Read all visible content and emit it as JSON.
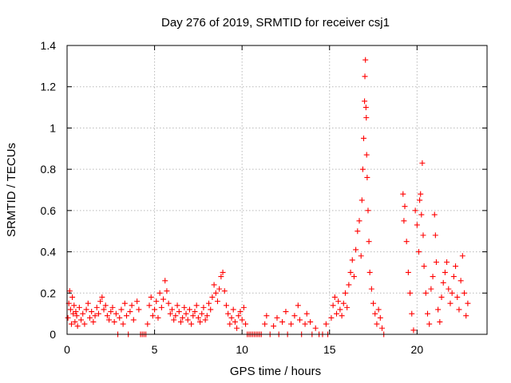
{
  "chart_data": {
    "type": "scatter",
    "title": "Day 276 of 2019, SRMTID for receiver csj1",
    "xlabel": "GPS time / hours",
    "ylabel": "SRMTID / TECUs",
    "xlim": [
      0,
      24
    ],
    "ylim": [
      0,
      1.4
    ],
    "x_ticks": [
      0,
      5,
      10,
      15,
      20
    ],
    "x_tick_labels": [
      "0",
      "5",
      "10",
      "15",
      "20"
    ],
    "y_ticks": [
      0,
      0.2,
      0.4,
      0.6,
      0.8,
      1.0,
      1.2,
      1.4
    ],
    "y_tick_labels": [
      "0",
      "0.2",
      "0.4",
      "0.6",
      "0.8",
      "1",
      "1.2",
      "1.4"
    ],
    "grid": true,
    "marker": "plus",
    "series": [
      {
        "name": "SRMTID",
        "color": "#ff0000",
        "points": [
          [
            0.05,
            0.08
          ],
          [
            0.1,
            0.15
          ],
          [
            0.15,
            0.21
          ],
          [
            0.2,
            0.12
          ],
          [
            0.25,
            0.05
          ],
          [
            0.3,
            0.18
          ],
          [
            0.35,
            0.1
          ],
          [
            0.4,
            0.14
          ],
          [
            0.45,
            0.06
          ],
          [
            0.5,
            0.11
          ],
          [
            0.55,
            0.09
          ],
          [
            0.6,
            0.04
          ],
          [
            0.7,
            0.13
          ],
          [
            0.8,
            0.07
          ],
          [
            0.9,
            0.1
          ],
          [
            1.0,
            0.05
          ],
          [
            1.1,
            0.12
          ],
          [
            1.2,
            0.15
          ],
          [
            1.3,
            0.08
          ],
          [
            1.4,
            0.11
          ],
          [
            1.5,
            0.06
          ],
          [
            1.6,
            0.09
          ],
          [
            1.7,
            0.13
          ],
          [
            1.8,
            0.1
          ],
          [
            1.9,
            0.16
          ],
          [
            2.0,
            0.18
          ],
          [
            2.1,
            0.12
          ],
          [
            2.2,
            0.14
          ],
          [
            2.3,
            0.09
          ],
          [
            2.4,
            0.07
          ],
          [
            2.5,
            0.11
          ],
          [
            2.6,
            0.13
          ],
          [
            2.7,
            0.06
          ],
          [
            2.8,
            0.1
          ],
          [
            2.9,
            0.0
          ],
          [
            3.0,
            0.08
          ],
          [
            3.1,
            0.12
          ],
          [
            3.2,
            0.05
          ],
          [
            3.3,
            0.15
          ],
          [
            3.4,
            0.09
          ],
          [
            3.5,
            0.0
          ],
          [
            3.6,
            0.11
          ],
          [
            3.7,
            0.14
          ],
          [
            3.8,
            0.07
          ],
          [
            4.0,
            0.16
          ],
          [
            4.1,
            0.12
          ],
          [
            4.2,
            0.0
          ],
          [
            4.3,
            0.0
          ],
          [
            4.4,
            0.0
          ],
          [
            4.5,
            0.0
          ],
          [
            4.6,
            0.05
          ],
          [
            4.7,
            0.14
          ],
          [
            4.8,
            0.18
          ],
          [
            4.9,
            0.09
          ],
          [
            5.0,
            0.12
          ],
          [
            5.1,
            0.16
          ],
          [
            5.2,
            0.08
          ],
          [
            5.3,
            0.2
          ],
          [
            5.4,
            0.13
          ],
          [
            5.5,
            0.17
          ],
          [
            5.6,
            0.26
          ],
          [
            5.7,
            0.21
          ],
          [
            5.8,
            0.15
          ],
          [
            5.9,
            0.1
          ],
          [
            6.0,
            0.12
          ],
          [
            6.1,
            0.07
          ],
          [
            6.2,
            0.09
          ],
          [
            6.3,
            0.14
          ],
          [
            6.4,
            0.11
          ],
          [
            6.5,
            0.06
          ],
          [
            6.6,
            0.08
          ],
          [
            6.7,
            0.13
          ],
          [
            6.8,
            0.1
          ],
          [
            6.9,
            0.07
          ],
          [
            7.0,
            0.12
          ],
          [
            7.1,
            0.05
          ],
          [
            7.2,
            0.09
          ],
          [
            7.3,
            0.11
          ],
          [
            7.4,
            0.14
          ],
          [
            7.5,
            0.08
          ],
          [
            7.6,
            0.06
          ],
          [
            7.7,
            0.1
          ],
          [
            7.8,
            0.13
          ],
          [
            7.9,
            0.07
          ],
          [
            8.0,
            0.09
          ],
          [
            8.1,
            0.15
          ],
          [
            8.2,
            0.12
          ],
          [
            8.3,
            0.18
          ],
          [
            8.4,
            0.24
          ],
          [
            8.5,
            0.2
          ],
          [
            8.6,
            0.16
          ],
          [
            8.7,
            0.22
          ],
          [
            8.8,
            0.28
          ],
          [
            8.9,
            0.3
          ],
          [
            9.0,
            0.21
          ],
          [
            9.1,
            0.14
          ],
          [
            9.2,
            0.1
          ],
          [
            9.3,
            0.05
          ],
          [
            9.4,
            0.08
          ],
          [
            9.5,
            0.12
          ],
          [
            9.6,
            0.06
          ],
          [
            9.7,
            0.03
          ],
          [
            9.8,
            0.09
          ],
          [
            9.9,
            0.11
          ],
          [
            10.0,
            0.07
          ],
          [
            10.1,
            0.13
          ],
          [
            10.2,
            0.05
          ],
          [
            10.3,
            0.0
          ],
          [
            10.4,
            0.0
          ],
          [
            10.5,
            0.0
          ],
          [
            10.6,
            0.0
          ],
          [
            10.7,
            0.0
          ],
          [
            10.8,
            0.0
          ],
          [
            10.9,
            0.0
          ],
          [
            11.0,
            0.0
          ],
          [
            11.1,
            0.0
          ],
          [
            11.3,
            0.05
          ],
          [
            11.4,
            0.09
          ],
          [
            11.6,
            0.0
          ],
          [
            11.8,
            0.04
          ],
          [
            12.0,
            0.08
          ],
          [
            12.1,
            0.0
          ],
          [
            12.3,
            0.06
          ],
          [
            12.5,
            0.11
          ],
          [
            12.6,
            0.0
          ],
          [
            12.8,
            0.05
          ],
          [
            13.0,
            0.09
          ],
          [
            13.2,
            0.14
          ],
          [
            13.3,
            0.07
          ],
          [
            13.4,
            0.0
          ],
          [
            13.6,
            0.05
          ],
          [
            13.7,
            0.1
          ],
          [
            13.9,
            0.06
          ],
          [
            14.0,
            0.0
          ],
          [
            14.2,
            0.03
          ],
          [
            14.4,
            0.0
          ],
          [
            14.6,
            0.0
          ],
          [
            14.8,
            0.05
          ],
          [
            14.9,
            0.0
          ],
          [
            15.1,
            0.08
          ],
          [
            15.2,
            0.14
          ],
          [
            15.3,
            0.18
          ],
          [
            15.4,
            0.1
          ],
          [
            15.5,
            0.16
          ],
          [
            15.6,
            0.12
          ],
          [
            15.7,
            0.09
          ],
          [
            15.8,
            0.15
          ],
          [
            15.9,
            0.2
          ],
          [
            16.0,
            0.13
          ],
          [
            16.1,
            0.24
          ],
          [
            16.2,
            0.3
          ],
          [
            16.3,
            0.36
          ],
          [
            16.4,
            0.28
          ],
          [
            16.5,
            0.41
          ],
          [
            16.6,
            0.5
          ],
          [
            16.7,
            0.55
          ],
          [
            16.8,
            0.38
          ],
          [
            16.85,
            0.65
          ],
          [
            16.9,
            0.8
          ],
          [
            16.95,
            0.95
          ],
          [
            17.0,
            1.13
          ],
          [
            17.02,
            1.25
          ],
          [
            17.05,
            1.33
          ],
          [
            17.08,
            1.1
          ],
          [
            17.1,
            1.05
          ],
          [
            17.12,
            0.87
          ],
          [
            17.15,
            0.76
          ],
          [
            17.2,
            0.6
          ],
          [
            17.25,
            0.45
          ],
          [
            17.3,
            0.3
          ],
          [
            17.4,
            0.22
          ],
          [
            17.5,
            0.15
          ],
          [
            17.6,
            0.1
          ],
          [
            17.7,
            0.05
          ],
          [
            17.8,
            0.12
          ],
          [
            17.9,
            0.08
          ],
          [
            18.0,
            0.03
          ],
          [
            18.1,
            0.0
          ],
          [
            19.2,
            0.68
          ],
          [
            19.25,
            0.55
          ],
          [
            19.3,
            0.62
          ],
          [
            19.4,
            0.45
          ],
          [
            19.5,
            0.3
          ],
          [
            19.6,
            0.2
          ],
          [
            19.7,
            0.1
          ],
          [
            19.8,
            0.02
          ],
          [
            19.9,
            0.6
          ],
          [
            20.0,
            0.53
          ],
          [
            20.1,
            0.4
          ],
          [
            20.15,
            0.65
          ],
          [
            20.2,
            0.68
          ],
          [
            20.25,
            0.58
          ],
          [
            20.3,
            0.83
          ],
          [
            20.35,
            0.48
          ],
          [
            20.4,
            0.33
          ],
          [
            20.5,
            0.2
          ],
          [
            20.6,
            0.1
          ],
          [
            20.7,
            0.05
          ],
          [
            20.8,
            0.22
          ],
          [
            20.9,
            0.28
          ],
          [
            21.0,
            0.58
          ],
          [
            21.05,
            0.48
          ],
          [
            21.1,
            0.35
          ],
          [
            21.2,
            0.12
          ],
          [
            21.3,
            0.06
          ],
          [
            21.4,
            0.18
          ],
          [
            21.5,
            0.25
          ],
          [
            21.6,
            0.3
          ],
          [
            21.7,
            0.35
          ],
          [
            21.8,
            0.22
          ],
          [
            21.9,
            0.15
          ],
          [
            22.0,
            0.2
          ],
          [
            22.1,
            0.28
          ],
          [
            22.2,
            0.33
          ],
          [
            22.3,
            0.18
          ],
          [
            22.4,
            0.12
          ],
          [
            22.5,
            0.26
          ],
          [
            22.6,
            0.38
          ],
          [
            22.7,
            0.2
          ],
          [
            22.8,
            0.09
          ],
          [
            22.9,
            0.15
          ]
        ]
      }
    ]
  }
}
